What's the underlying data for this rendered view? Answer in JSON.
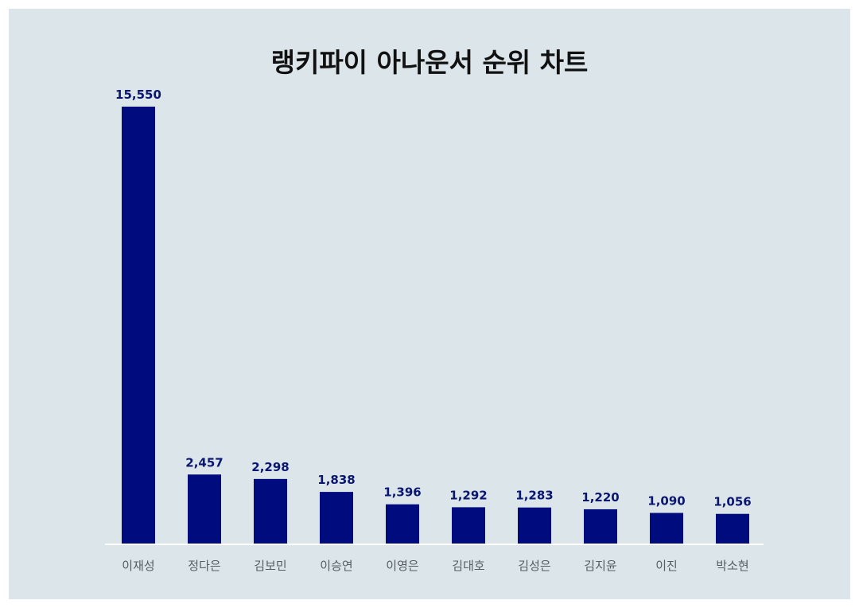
{
  "chart_data": {
    "type": "bar",
    "title": "랭키파이 아나운서 순위 차트",
    "categories": [
      "이재성",
      "정다은",
      "김보민",
      "이승연",
      "이영은",
      "김대호",
      "김성은",
      "김지윤",
      "이진",
      "박소현"
    ],
    "values": [
      15550,
      2457,
      2298,
      1838,
      1396,
      1292,
      1283,
      1220,
      1090,
      1056
    ],
    "value_labels": [
      "15,550",
      "2,457",
      "2,298",
      "1,838",
      "1,396",
      "1,292",
      "1,283",
      "1,220",
      "1,090",
      "1,056"
    ],
    "xlabel": "",
    "ylabel": "",
    "ylim": [
      0,
      15550
    ],
    "grid": false,
    "legend": "none",
    "colors": {
      "bar": "#000c7d",
      "value_label": "#0a1670",
      "background": "#dce6ea",
      "category_label": "#555d63"
    }
  }
}
